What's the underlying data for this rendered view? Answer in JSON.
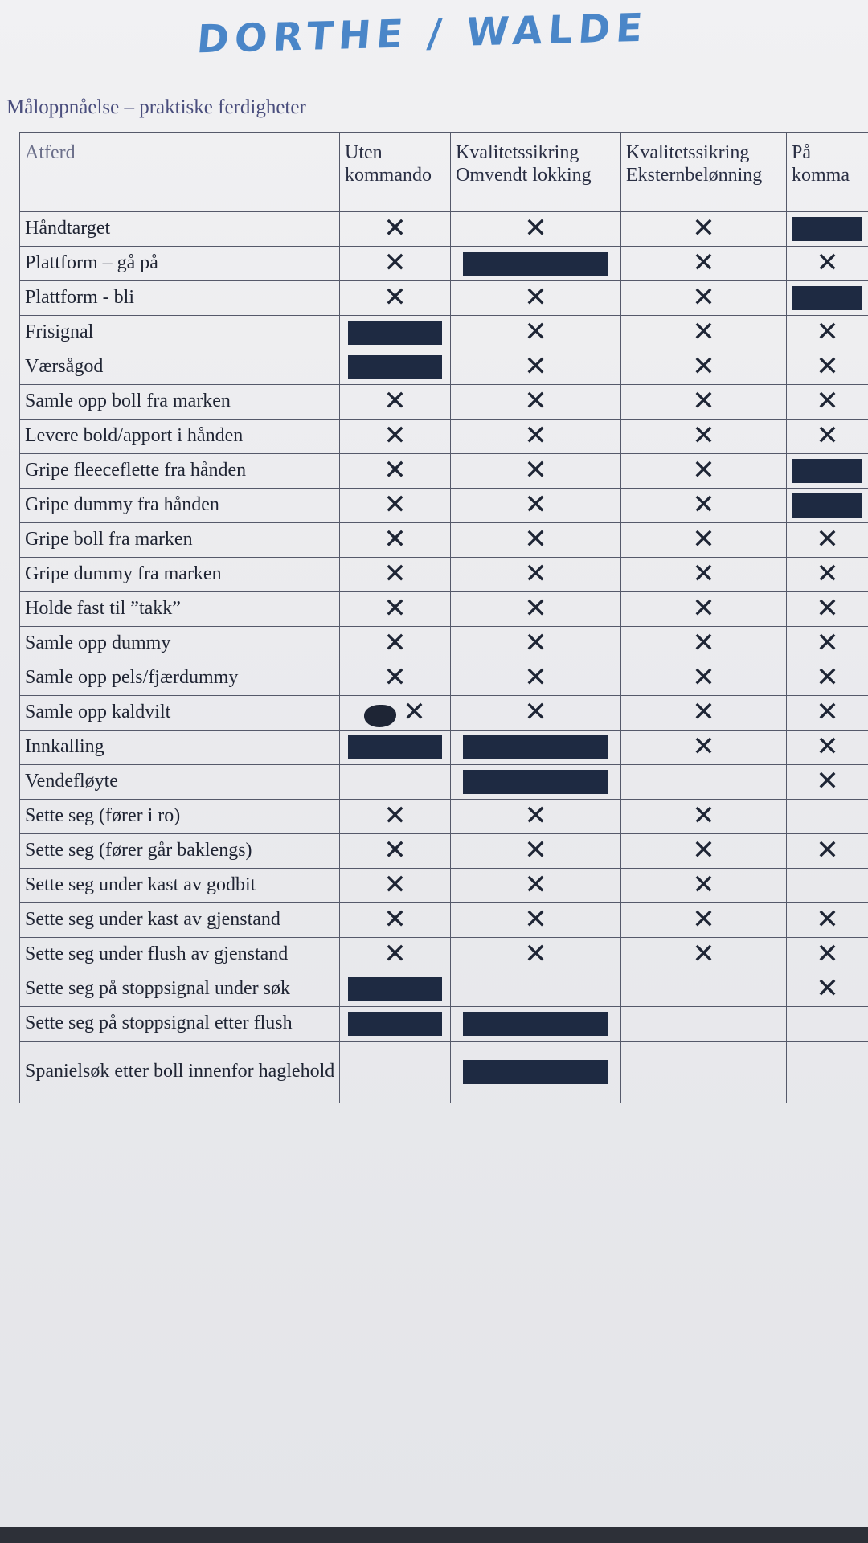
{
  "sheet": {
    "handwritten_title": "DORTHE / WALDE",
    "table_caption": "Måloppnåelse – praktiske ferdigheter"
  },
  "table": {
    "headers": [
      "Atferd",
      "Uten kommando",
      "Kvalitetssikring Omvendt lokking",
      "Kvalitetssikring Eksternbelønning",
      "På komma"
    ],
    "rows": [
      {
        "behaviour": "Håndtarget",
        "marks": [
          "x",
          "x",
          "x",
          "bar"
        ]
      },
      {
        "behaviour": "Plattform – gå på",
        "marks": [
          "x",
          "bar",
          "x",
          "x"
        ]
      },
      {
        "behaviour": "Plattform  - bli",
        "marks": [
          "x",
          "x",
          "x",
          "bar"
        ]
      },
      {
        "behaviour": "Frisignal",
        "marks": [
          "bar",
          "x",
          "x",
          "x"
        ]
      },
      {
        "behaviour": "Værsågod",
        "marks": [
          "bar",
          "x",
          "x",
          "x"
        ]
      },
      {
        "behaviour": "Samle opp boll fra marken",
        "marks": [
          "x",
          "x",
          "x",
          "x"
        ]
      },
      {
        "behaviour": "Levere bold/apport i hånden",
        "marks": [
          "x",
          "x",
          "x",
          "x"
        ]
      },
      {
        "behaviour": "Gripe fleeceflette fra hånden",
        "marks": [
          "x",
          "x",
          "x",
          "bar"
        ]
      },
      {
        "behaviour": "Gripe dummy fra hånden",
        "marks": [
          "x",
          "x",
          "x",
          "bar"
        ]
      },
      {
        "behaviour": "Gripe boll fra marken",
        "marks": [
          "x",
          "x",
          "x",
          "x"
        ]
      },
      {
        "behaviour": "Gripe dummy fra marken",
        "marks": [
          "x",
          "x",
          "x",
          "x"
        ]
      },
      {
        "behaviour": "Holde fast til ”takk”",
        "marks": [
          "x",
          "x",
          "x",
          "x"
        ]
      },
      {
        "behaviour": "Samle opp dummy",
        "marks": [
          "x",
          "x",
          "x",
          "x"
        ]
      },
      {
        "behaviour": "Samle opp pels/fjærdummy",
        "marks": [
          "x",
          "x",
          "x",
          "x"
        ]
      },
      {
        "behaviour": "Samle opp kaldvilt",
        "marks": [
          "blot-x",
          "x",
          "x",
          "x"
        ]
      },
      {
        "behaviour": "Innkalling",
        "marks": [
          "bar",
          "bar",
          "x",
          "x"
        ]
      },
      {
        "behaviour": "Vendefløyte",
        "marks": [
          "",
          "bar",
          "",
          "x"
        ]
      },
      {
        "behaviour": "Sette seg (fører i ro)",
        "marks": [
          "x",
          "x",
          "x",
          ""
        ]
      },
      {
        "behaviour": "Sette seg (fører går baklengs)",
        "marks": [
          "x",
          "x",
          "x",
          "x"
        ]
      },
      {
        "behaviour": "Sette seg under kast av godbit",
        "marks": [
          "x",
          "x",
          "x",
          ""
        ]
      },
      {
        "behaviour": "Sette seg under kast av gjenstand",
        "marks": [
          "x",
          "x",
          "x",
          "x"
        ]
      },
      {
        "behaviour": "Sette seg under flush av gjenstand",
        "marks": [
          "x",
          "x",
          "x",
          "x"
        ]
      },
      {
        "behaviour": "Sette seg på stoppsignal under søk",
        "marks": [
          "bar",
          "",
          "",
          "x"
        ]
      },
      {
        "behaviour": "Sette seg på stoppsignal etter flush",
        "marks": [
          "bar",
          "bar",
          "",
          ""
        ]
      },
      {
        "behaviour": "Spanielsøk etter boll innenfor haglehold",
        "marks": [
          "",
          "bar",
          "",
          ""
        ]
      }
    ]
  },
  "colors": {
    "ink_blue": "#4a86c8",
    "table_text": "#1f2433",
    "marker_bar": "#1e2a42"
  }
}
